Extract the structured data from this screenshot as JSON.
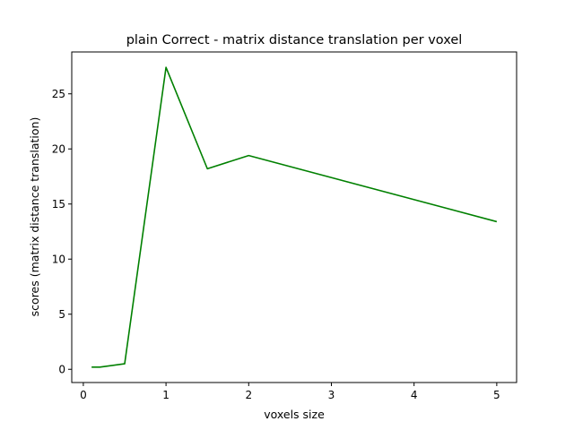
{
  "chart_data": {
    "type": "line",
    "title": "plain Correct - matrix distance translation per voxel",
    "xlabel": "voxels size",
    "ylabel": "scores (matrix distance translation)",
    "xlim": [
      -0.14,
      5.24
    ],
    "ylim": [
      -1.2,
      28.8
    ],
    "x_ticks": [
      0,
      1,
      2,
      3,
      4,
      5
    ],
    "y_ticks": [
      0,
      5,
      10,
      15,
      20,
      25
    ],
    "grid": false,
    "series": [
      {
        "color": "#008000",
        "x": [
          0.1,
          0.2,
          0.5,
          1.0,
          1.5,
          2.0,
          5.0
        ],
        "y": [
          0.2,
          0.2,
          0.5,
          27.4,
          18.2,
          19.4,
          13.4
        ]
      }
    ]
  }
}
